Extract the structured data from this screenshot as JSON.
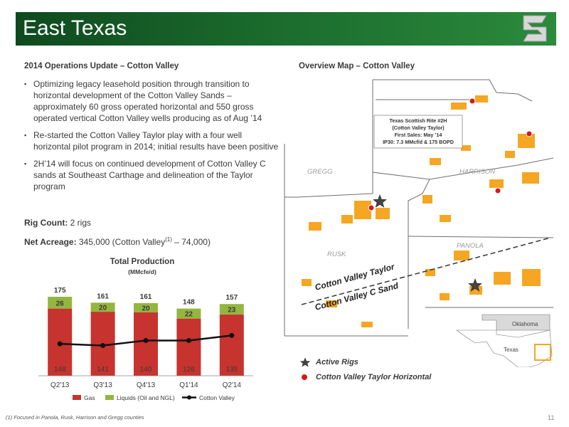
{
  "header": {
    "title": "East Texas"
  },
  "left": {
    "heading": "2014 Operations Update – Cotton Valley",
    "bullets": [
      "Optimizing legacy leasehold position through transition to horizontal development of the Cotton Valley Sands – approximately 60 gross operated horizontal and 550 gross operated vertical Cotton Valley wells producing as of Aug ’14",
      "Re-started the Cotton Valley Taylor play with a four well horizontal pilot program in 2014; initial results have been positive",
      "2H’14 will focus on continued development of Cotton Valley C sands at Southeast Carthage and delineation of the Taylor program"
    ],
    "rig_label": "Rig Count:",
    "rig_value": " 2 rigs",
    "acreage_label": "Net Acreage:",
    "acreage_value": " 345,000 (Cotton Valley",
    "acreage_sup": "(1)",
    "acreage_tail": " – 74,000)"
  },
  "chart_data": {
    "type": "bar",
    "title": "Total Production",
    "subtitle": "(MMcfe/d)",
    "categories": [
      "Q2'13",
      "Q3'13",
      "Q4'13",
      "Q1'14",
      "Q2'14"
    ],
    "series": [
      {
        "name": "Gas",
        "type": "bar",
        "values": [
          148,
          141,
          140,
          126,
          135
        ]
      },
      {
        "name": "Liquids (Oil and NGL)",
        "type": "bar",
        "values": [
          26,
          20,
          20,
          22,
          23
        ]
      },
      {
        "name": "Cotton Valley",
        "type": "line",
        "values": [
          null,
          null,
          null,
          null,
          null
        ]
      }
    ],
    "totals": [
      175,
      161,
      161,
      148,
      157
    ],
    "line_level": [
      0.38,
      0.36,
      0.42,
      0.42,
      0.48
    ],
    "colors": {
      "gas": "#c7332e",
      "liquids": "#94b640",
      "line": "#111111"
    },
    "legend_position": "bottom",
    "ylim": [
      0,
      185
    ]
  },
  "map": {
    "heading": "Overview Map – Cotton Valley",
    "counties": [
      "GREGG",
      "HARRISON",
      "RUSK",
      "PANOLA"
    ],
    "callout": [
      "Texas Scottish Rite #2H",
      "(Cotton Valley Taylor)",
      "First Sales:  May ’14",
      "IP30:  7.3 MMcf/d & 175 BOPD"
    ],
    "trend_taylor": "Cotton Valley Taylor",
    "trend_c": "Cotton Valley C Sand",
    "inset_oklahoma": "Oklahoma",
    "inset_texas": "Texas",
    "colors": {
      "acreage": "#f5a623",
      "well": "#d7191c",
      "county_line": "#666666"
    }
  },
  "legend": {
    "active_rigs": "Active Rigs",
    "cv_taylor": "Cotton Valley Taylor Horizontal"
  },
  "footer": {
    "footnote": "(1)    Focused in Panola, Rusk, Harrison and Gregg counties",
    "page": "11"
  }
}
